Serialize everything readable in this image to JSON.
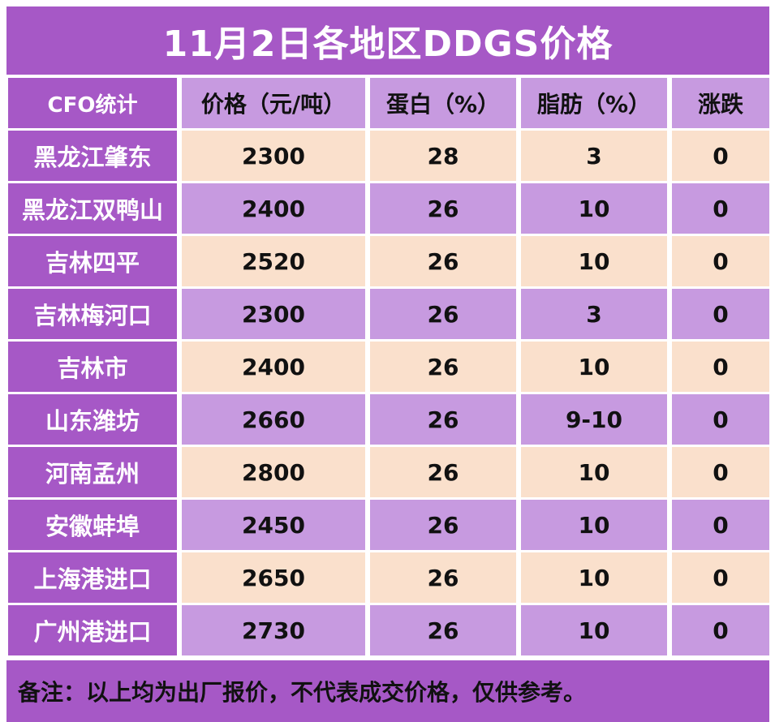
{
  "title": "11月2日各地区DDGS价格",
  "headers": [
    "CFO统计",
    "价格（元/吨）",
    "蛋白（%）",
    "脂肪（%）",
    "涨跌"
  ],
  "rows": [
    {
      "region": "黑龙江肇东",
      "price": "2300",
      "protein": "28",
      "fat": "3",
      "change": "0"
    },
    {
      "region": "黑龙江双鸭山",
      "price": "2400",
      "protein": "26",
      "fat": "10",
      "change": "0"
    },
    {
      "region": "吉林四平",
      "price": "2520",
      "protein": "26",
      "fat": "10",
      "change": "0"
    },
    {
      "region": "吉林梅河口",
      "price": "2300",
      "protein": "26",
      "fat": "3",
      "change": "0"
    },
    {
      "region": "吉林市",
      "price": "2400",
      "protein": "26",
      "fat": "10",
      "change": "0"
    },
    {
      "region": "山东潍坊",
      "price": "2660",
      "protein": "26",
      "fat": "9-10",
      "change": "0"
    },
    {
      "region": "河南孟州",
      "price": "2800",
      "protein": "26",
      "fat": "10",
      "change": "0"
    },
    {
      "region": "安徽蚌埠",
      "price": "2450",
      "protein": "26",
      "fat": "10",
      "change": "0"
    },
    {
      "region": "上海港进口",
      "price": "2650",
      "protein": "26",
      "fat": "10",
      "change": "0"
    },
    {
      "region": "广州港进口",
      "price": "2730",
      "protein": "26",
      "fat": "10",
      "change": "0"
    }
  ],
  "note": "备注：以上均为出厂报价，不代表成交价格，仅供参考。",
  "colors": {
    "purple": "#a658c6",
    "lavender": "#c79ae0",
    "peach": "#fae0cc"
  }
}
